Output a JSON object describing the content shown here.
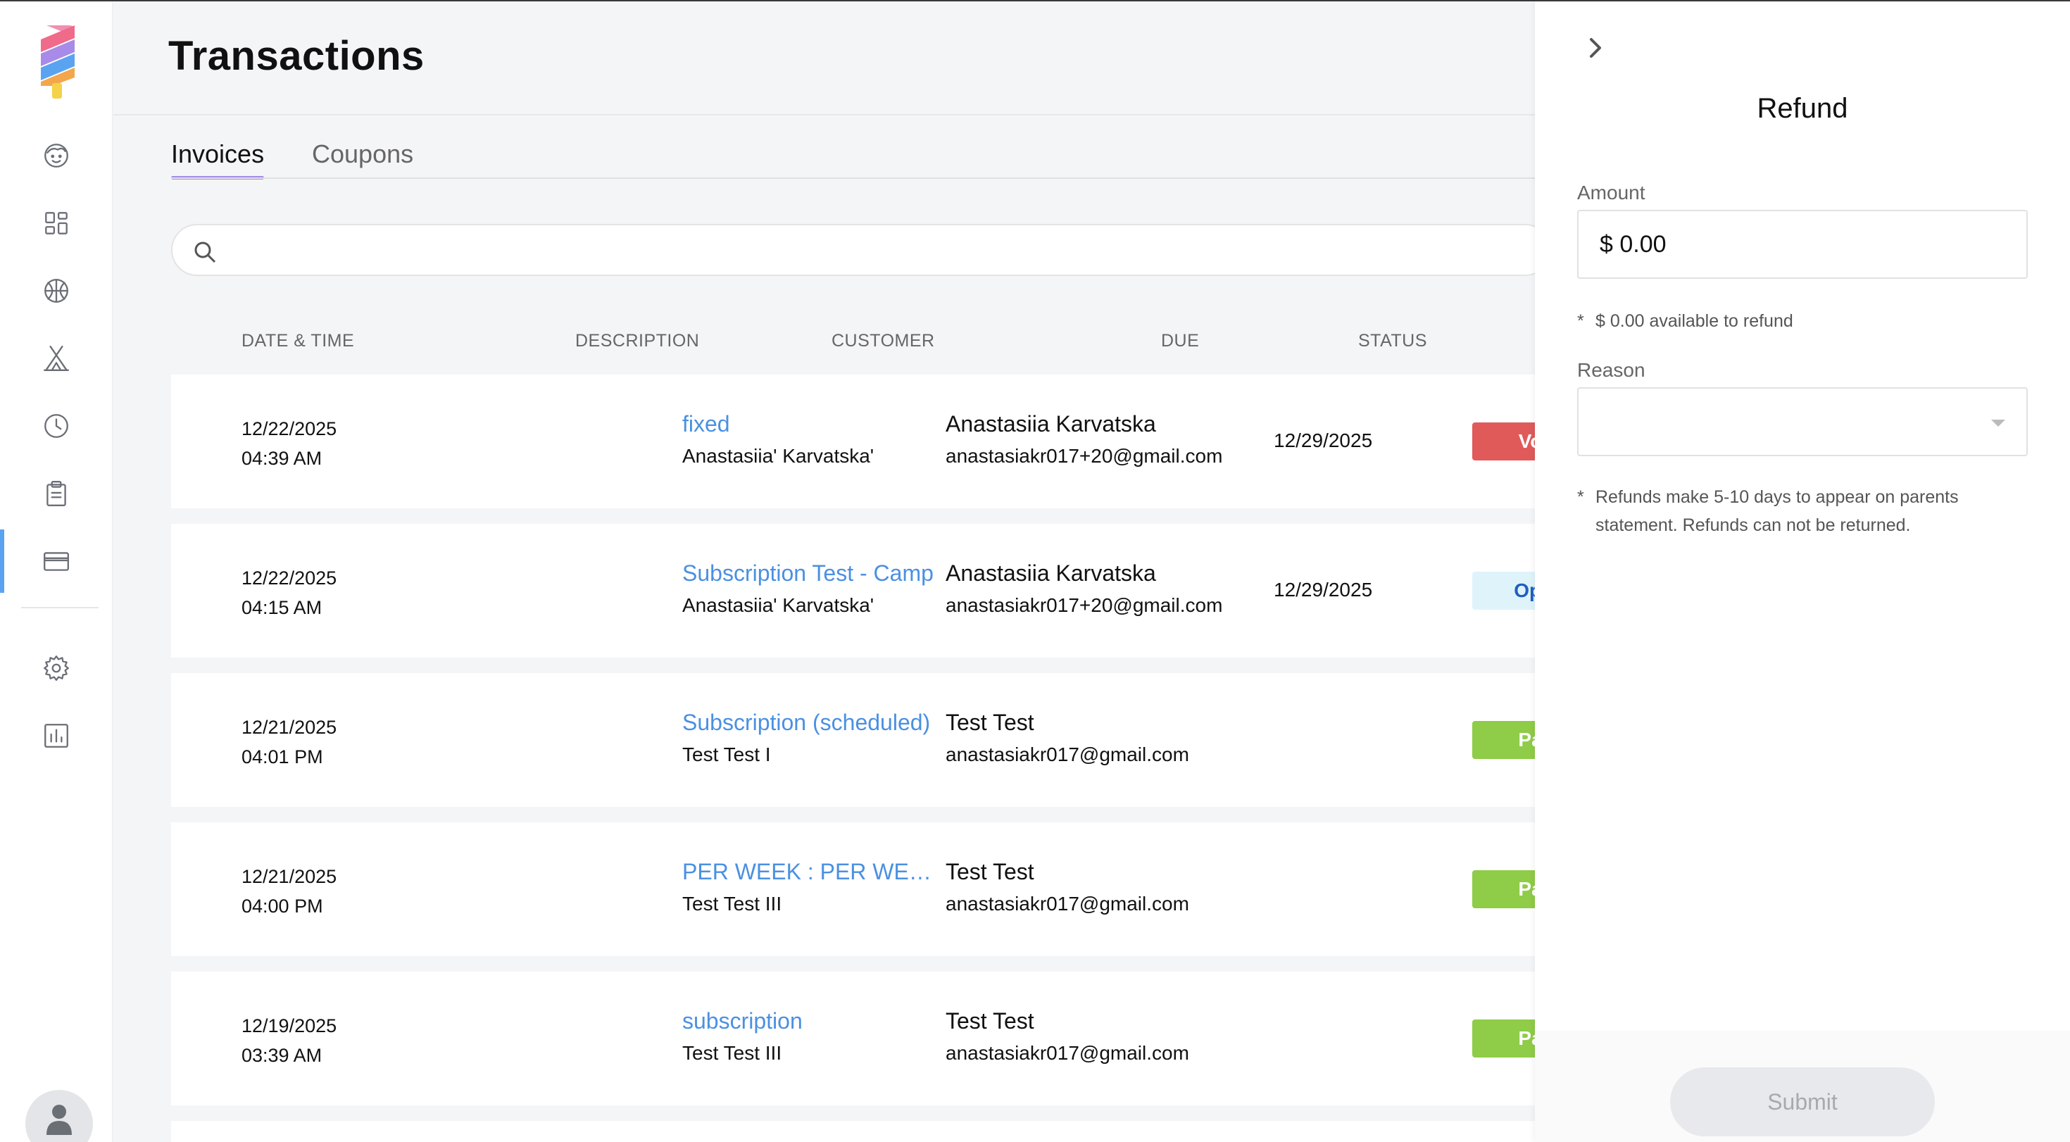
{
  "page": {
    "title": "Transactions"
  },
  "tabs": [
    {
      "label": "Invoices",
      "active": true
    },
    {
      "label": "Coupons",
      "active": false
    }
  ],
  "search": {
    "value": "",
    "placeholder": ""
  },
  "sidebar": {
    "items": [
      {
        "icon": "face-icon"
      },
      {
        "icon": "dashboard-icon"
      },
      {
        "icon": "ball-icon"
      },
      {
        "icon": "camp-tent-icon"
      },
      {
        "icon": "clock-icon"
      },
      {
        "icon": "clipboard-icon"
      },
      {
        "icon": "credit-card-icon",
        "active": true
      },
      {
        "icon": "gear-icon"
      },
      {
        "icon": "bar-chart-icon"
      }
    ],
    "accent": "#5aa3f0"
  },
  "table": {
    "columns": [
      "DATE & TIME",
      "DESCRIPTION",
      "CUSTOMER",
      "DUE",
      "STATUS"
    ],
    "rows": [
      {
        "date": "12/22/2025",
        "time": "04:39 AM",
        "description": "fixed",
        "description_sub": "Anastasiia' Karvatska'",
        "customer": "Anastasiia Karvatska",
        "email": "anastasiakr017+20@gmail.com",
        "due": "12/29/2025",
        "status": "Void"
      },
      {
        "date": "12/22/2025",
        "time": "04:15 AM",
        "description": "Subscription Test - Camp",
        "description_sub": "Anastasiia' Karvatska'",
        "customer": "Anastasiia Karvatska",
        "email": "anastasiakr017+20@gmail.com",
        "due": "12/29/2025",
        "status": "Open"
      },
      {
        "date": "12/21/2025",
        "time": "04:01 PM",
        "description": "Subscription (scheduled)",
        "description_sub": "Test Test I",
        "customer": "Test Test",
        "email": "anastasiakr017@gmail.com",
        "due": "",
        "status": "Paid"
      },
      {
        "date": "12/21/2025",
        "time": "04:00 PM",
        "description": "PER WEEK : PER WEEK",
        "description_sub": "Test Test III",
        "customer": "Test Test",
        "email": "anastasiakr017@gmail.com",
        "due": "",
        "status": "Paid"
      },
      {
        "date": "12/19/2025",
        "time": "03:39 AM",
        "description": "subscription",
        "description_sub": "Test Test III",
        "customer": "Test Test",
        "email": "anastasiakr017@gmail.com",
        "due": "",
        "status": "Paid"
      }
    ]
  },
  "status_colors": {
    "Void": {
      "bg": "#e05a5a",
      "fg": "#ffffff"
    },
    "Open": {
      "bg": "#dff3fb",
      "fg": "#1f5fbf"
    },
    "Paid": {
      "bg": "#8fcc47",
      "fg": "#ffffff"
    }
  },
  "refund": {
    "title": "Refund",
    "amount_label": "Amount",
    "amount_value": "$ 0.00",
    "available_star": "*",
    "available_note": "$ 0.00 available to refund",
    "reason_label": "Reason",
    "reason_value": "",
    "policy_star": "*",
    "policy_note": "Refunds make 5-10 days to appear on parents statement. Refunds can not be returned.",
    "submit_label": "Submit"
  }
}
